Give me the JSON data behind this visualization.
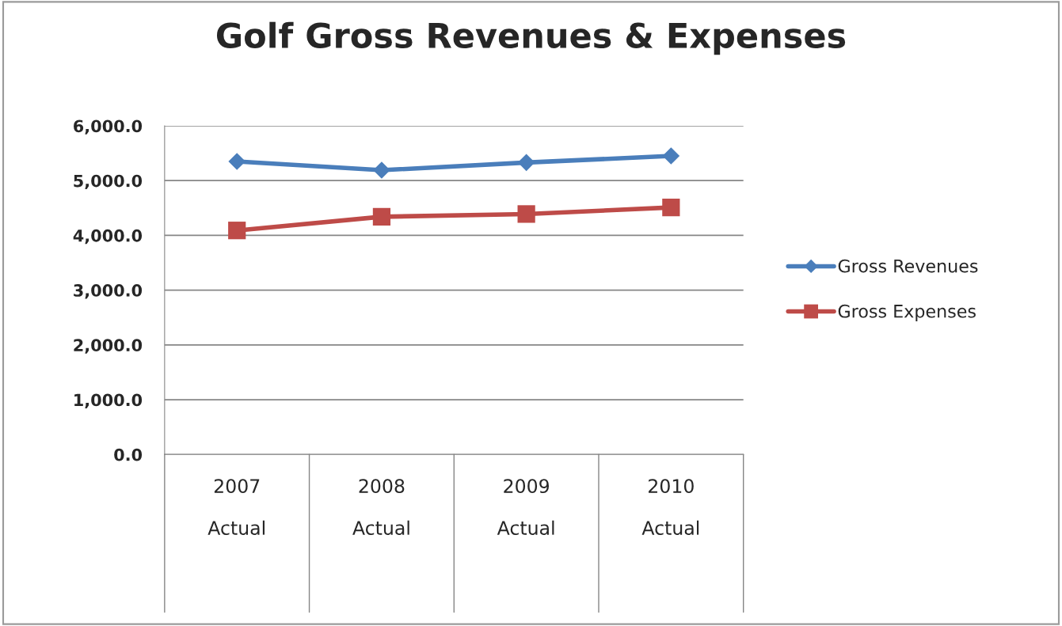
{
  "chart_data": {
    "type": "line",
    "title": "Golf Gross Revenues & Expenses",
    "categories": [
      "2007\n\nActual",
      "2008\n\nActual",
      "2009\n\nActual",
      "2010\n\nActual"
    ],
    "series": [
      {
        "name": "Gross Revenues",
        "color": "#4a7ebb",
        "marker": "diamond",
        "values": [
          5350,
          5190,
          5330,
          5450
        ]
      },
      {
        "name": "Gross Expenses",
        "color": "#be4b48",
        "marker": "square",
        "values": [
          4090,
          4340,
          4390,
          4510
        ]
      }
    ],
    "ylim": [
      0,
      6000
    ],
    "yticks": [
      {
        "value": 0,
        "label": "0.0"
      },
      {
        "value": 1000,
        "label": "1,000.0"
      },
      {
        "value": 2000,
        "label": "2,000.0"
      },
      {
        "value": 3000,
        "label": "3,000.0"
      },
      {
        "value": 4000,
        "label": "4,000.0"
      },
      {
        "value": 5000,
        "label": "5,000.0"
      },
      {
        "value": 6000,
        "label": "6,000.0"
      }
    ],
    "grid": "y",
    "legend": "right",
    "line_style": "solid"
  }
}
